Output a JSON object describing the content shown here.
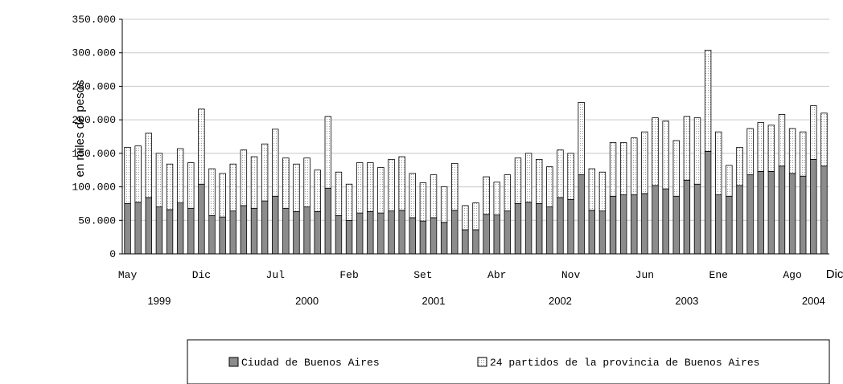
{
  "chart_data": {
    "type": "bar",
    "stacked": true,
    "ylabel": "en miles de pesos",
    "ylim": [
      0,
      350000
    ],
    "yticks": [
      "0",
      "50.000",
      "100.000",
      "150.000",
      "200.000",
      "250.000",
      "300.000",
      "350.000"
    ],
    "x_tick_labels": [
      {
        "index": 0,
        "label": "May"
      },
      {
        "index": 7,
        "label": "Dic"
      },
      {
        "index": 14,
        "label": "Jul"
      },
      {
        "index": 21,
        "label": "Feb"
      },
      {
        "index": 28,
        "label": "Set"
      },
      {
        "index": 35,
        "label": "Abr"
      },
      {
        "index": 42,
        "label": "Nov"
      },
      {
        "index": 49,
        "label": "Jun"
      },
      {
        "index": 56,
        "label": "Ene"
      },
      {
        "index": 63,
        "label": "Ago"
      },
      {
        "index": 67,
        "label": "Dic"
      }
    ],
    "years": [
      {
        "index": 3,
        "label": "1999"
      },
      {
        "index": 17,
        "label": "2000"
      },
      {
        "index": 29,
        "label": "2001"
      },
      {
        "index": 41,
        "label": "2002"
      },
      {
        "index": 53,
        "label": "2003"
      },
      {
        "index": 65,
        "label": "2004"
      }
    ],
    "series": [
      {
        "name": "Ciudad de Buenos Aires",
        "color": "#8c8c8c",
        "pattern": "solid",
        "values": [
          75000,
          77000,
          84000,
          70000,
          66000,
          76000,
          68000,
          104000,
          57000,
          55000,
          64000,
          72000,
          68000,
          79000,
          86000,
          68000,
          63000,
          70000,
          63000,
          98000,
          57000,
          50000,
          61000,
          63000,
          61000,
          64000,
          65000,
          54000,
          49000,
          54000,
          47000,
          65000,
          36000,
          36000,
          59000,
          58000,
          64000,
          75000,
          77000,
          75000,
          70000,
          84000,
          81000,
          118000,
          65000,
          64000,
          86000,
          88000,
          88000,
          90000,
          102000,
          97000,
          86000,
          110000,
          104000,
          153000,
          88000,
          86000,
          102000,
          118000,
          123000,
          123000,
          131000,
          120000,
          116000,
          141000,
          131000
        ]
      },
      {
        "name": "24 partidos de la provincia de Buenos Aires",
        "color": "#ffffff",
        "pattern": "dotted",
        "values": [
          84000,
          84000,
          96000,
          80000,
          68000,
          81000,
          68000,
          112000,
          70000,
          65000,
          70000,
          83000,
          77000,
          85000,
          100000,
          75000,
          71000,
          73000,
          62000,
          107000,
          65000,
          54000,
          75000,
          73000,
          68000,
          77000,
          80000,
          66000,
          57000,
          64000,
          53000,
          70000,
          36000,
          40000,
          56000,
          49000,
          54000,
          68000,
          73000,
          66000,
          60000,
          71000,
          69000,
          108000,
          62000,
          58000,
          80000,
          78000,
          85000,
          92000,
          101000,
          101000,
          83000,
          95000,
          99000,
          151000,
          94000,
          46000,
          57000,
          69000,
          73000,
          69000,
          77000,
          67000,
          66000,
          80000,
          79000
        ]
      }
    ]
  }
}
